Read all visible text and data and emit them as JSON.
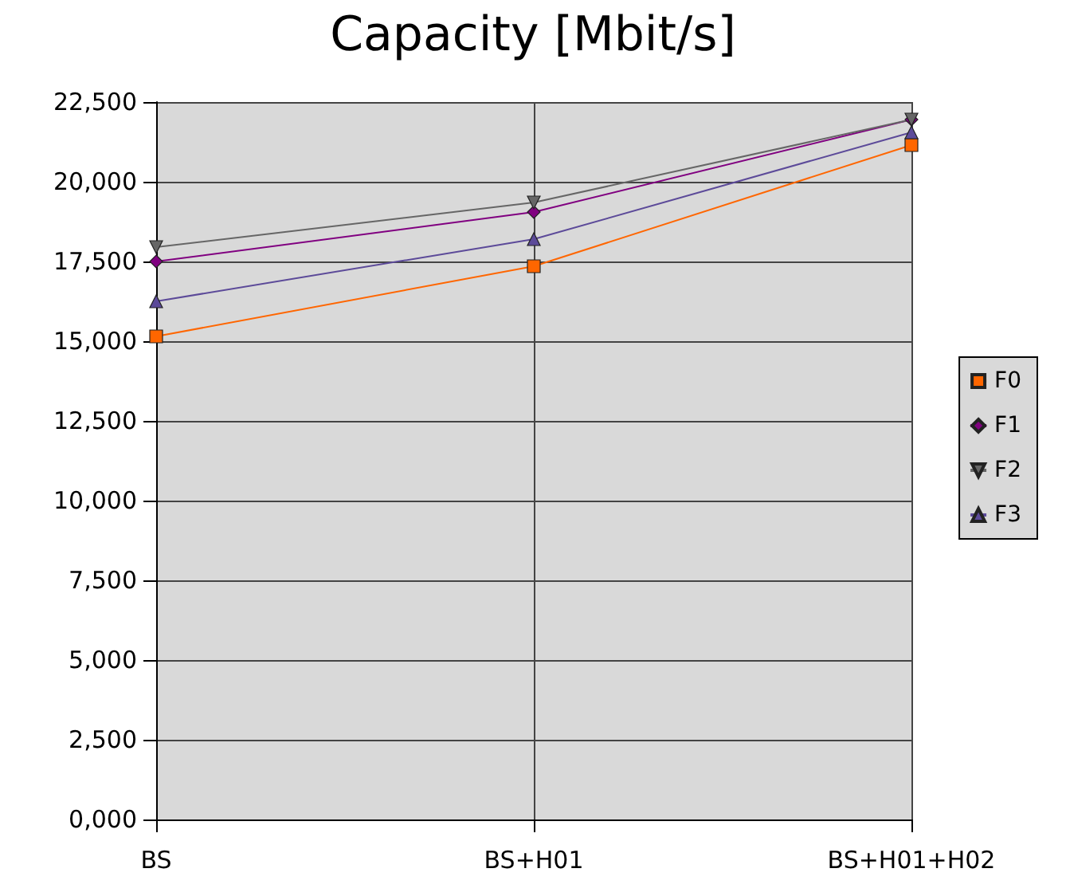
{
  "chart_data": {
    "type": "line",
    "title": "Capacity [Mbit/s]",
    "categories": [
      "BS",
      "BS+H01",
      "BS+H01+H02"
    ],
    "series": [
      {
        "name": "F0",
        "color": "#ff6600",
        "marker": "square",
        "values": [
          15150,
          17350,
          21150
        ]
      },
      {
        "name": "F1",
        "color": "#800080",
        "marker": "diamond",
        "values": [
          17500,
          19050,
          21950
        ]
      },
      {
        "name": "F2",
        "color": "#666666",
        "marker": "triangle-down",
        "values": [
          17950,
          19350,
          21950
        ]
      },
      {
        "name": "F3",
        "color": "#5c4a99",
        "marker": "triangle",
        "values": [
          16250,
          18200,
          21550
        ]
      }
    ],
    "ylim": [
      0,
      22500
    ],
    "yticks": [
      {
        "value": 0,
        "label": "0,000"
      },
      {
        "value": 2500,
        "label": "2,500"
      },
      {
        "value": 5000,
        "label": "5,000"
      },
      {
        "value": 7500,
        "label": "7,500"
      },
      {
        "value": 10000,
        "label": "10,000"
      },
      {
        "value": 12500,
        "label": "12,500"
      },
      {
        "value": 15000,
        "label": "15,000"
      },
      {
        "value": 17500,
        "label": "17,500"
      },
      {
        "value": 20000,
        "label": "20,000"
      },
      {
        "value": 22500,
        "label": "22,500"
      }
    ],
    "grid": true,
    "legend": "right",
    "line_style": "solid"
  }
}
